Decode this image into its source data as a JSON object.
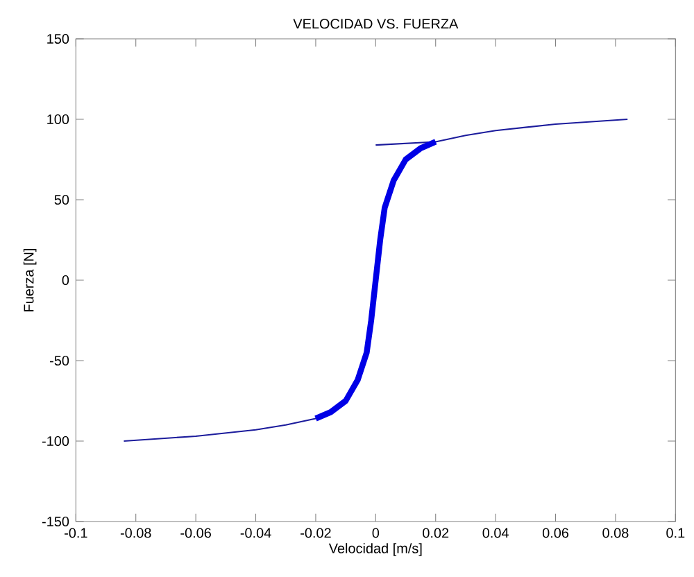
{
  "chart_data": {
    "type": "line",
    "title": "VELOCIDAD VS. FUERZA",
    "xlabel": "Velocidad [m/s]",
    "ylabel": "Fuerza [N]",
    "xlim": [
      -0.1,
      0.1
    ],
    "ylim": [
      -150,
      150
    ],
    "xticks": [
      -0.1,
      -0.08,
      -0.06,
      -0.04,
      -0.02,
      0,
      0.02,
      0.04,
      0.06,
      0.08,
      0.1
    ],
    "yticks": [
      -150,
      -100,
      -50,
      0,
      50,
      100,
      150
    ],
    "series": [
      {
        "color": "#1c1c9c",
        "x": [
          -0.084,
          -0.06,
          -0.04,
          -0.03,
          -0.02,
          -0.015,
          -0.01,
          -0.006,
          -0.003,
          -0.0015,
          0,
          0.0015,
          0.003,
          0.006,
          0.01,
          0.015,
          0.02,
          0.03,
          0.04,
          0.06,
          0.084
        ],
        "values": [
          -100,
          -97,
          -93,
          -90,
          -86,
          -82,
          -75,
          -62,
          -45,
          -25,
          0,
          25,
          45,
          62,
          75,
          82,
          86,
          90,
          93,
          97,
          100
        ]
      },
      {
        "color": "#1c1c9c",
        "x": [
          0,
          0.02
        ],
        "values": [
          84,
          86
        ]
      },
      {
        "color": "#0000e6",
        "x": [
          -0.02,
          -0.015,
          -0.01,
          -0.006,
          -0.003,
          -0.0015,
          0,
          0.0015,
          0.003,
          0.006,
          0.01,
          0.015,
          0.02
        ],
        "values": [
          -86,
          -82,
          -75,
          -62,
          -45,
          -25,
          0,
          25,
          45,
          62,
          75,
          82,
          86
        ]
      }
    ]
  }
}
